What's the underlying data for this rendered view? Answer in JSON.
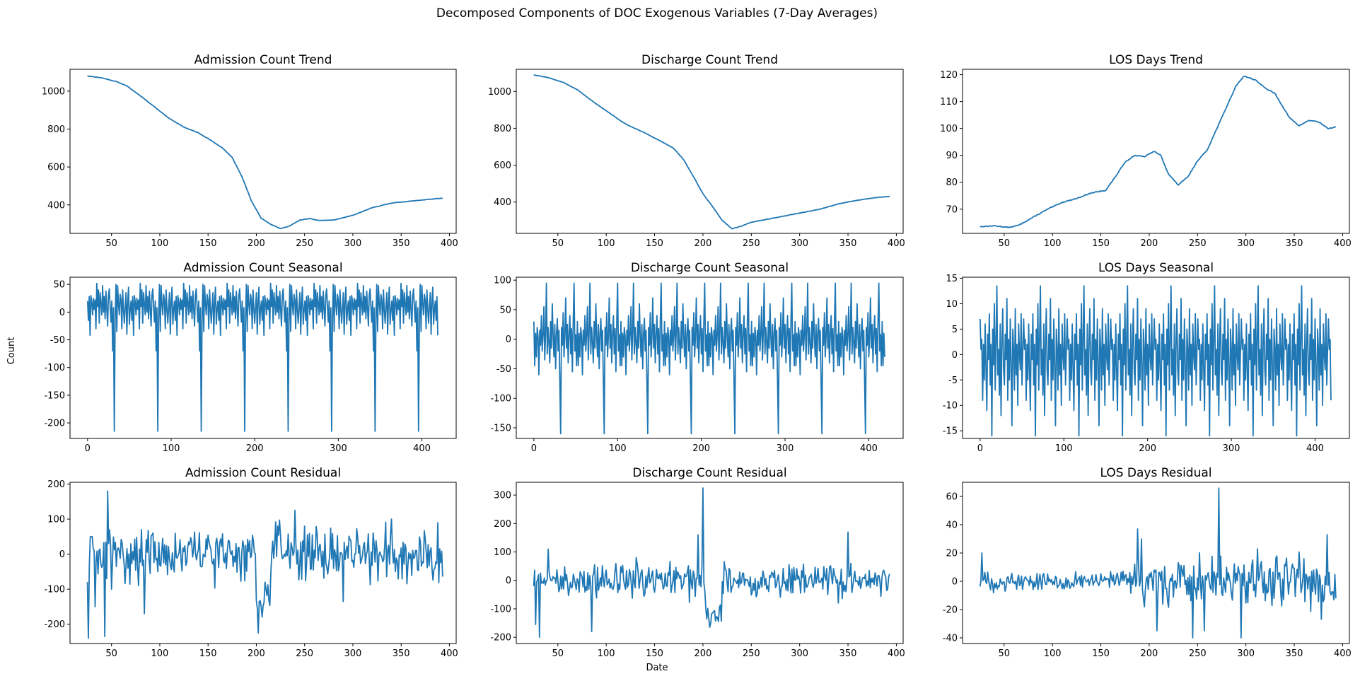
{
  "figure": {
    "suptitle": "Decomposed Components of DOC Exogenous Variables (7-Day Averages)",
    "shared_ylabel": "Count",
    "shared_xlabel": "Date",
    "line_color": "#1f77b4"
  },
  "chart_data": [
    {
      "type": "line",
      "title": "Admission Count Trend",
      "xlim": [
        7,
        407
      ],
      "ylim": [
        250,
        1115
      ],
      "xticks": [
        50,
        100,
        150,
        200,
        250,
        300,
        350,
        400
      ],
      "yticks": [
        400,
        600,
        800,
        1000
      ],
      "anchors": [
        [
          25,
          1080
        ],
        [
          40,
          1070
        ],
        [
          55,
          1050
        ],
        [
          65,
          1030
        ],
        [
          80,
          975
        ],
        [
          95,
          915
        ],
        [
          110,
          855
        ],
        [
          125,
          810
        ],
        [
          140,
          780
        ],
        [
          150,
          750
        ],
        [
          165,
          700
        ],
        [
          175,
          650
        ],
        [
          185,
          550
        ],
        [
          195,
          420
        ],
        [
          205,
          330
        ],
        [
          215,
          298
        ],
        [
          225,
          275
        ],
        [
          235,
          290
        ],
        [
          245,
          320
        ],
        [
          255,
          328
        ],
        [
          265,
          318
        ],
        [
          280,
          320
        ],
        [
          300,
          345
        ],
        [
          320,
          385
        ],
        [
          340,
          410
        ],
        [
          360,
          420
        ],
        [
          380,
          430
        ],
        [
          393,
          435
        ]
      ],
      "noise": 2,
      "seed": 11
    },
    {
      "type": "line",
      "title": "Discharge Count Trend",
      "xlim": [
        7,
        407
      ],
      "ylim": [
        230,
        1120
      ],
      "xticks": [
        50,
        100,
        150,
        200,
        250,
        300,
        350,
        400
      ],
      "yticks": [
        400,
        600,
        800,
        1000
      ],
      "anchors": [
        [
          25,
          1090
        ],
        [
          40,
          1075
        ],
        [
          55,
          1050
        ],
        [
          70,
          1010
        ],
        [
          85,
          950
        ],
        [
          100,
          895
        ],
        [
          115,
          840
        ],
        [
          125,
          810
        ],
        [
          140,
          775
        ],
        [
          160,
          720
        ],
        [
          170,
          690
        ],
        [
          180,
          630
        ],
        [
          190,
          540
        ],
        [
          200,
          445
        ],
        [
          210,
          375
        ],
        [
          220,
          300
        ],
        [
          230,
          255
        ],
        [
          240,
          270
        ],
        [
          250,
          290
        ],
        [
          265,
          305
        ],
        [
          280,
          320
        ],
        [
          300,
          340
        ],
        [
          320,
          360
        ],
        [
          340,
          390
        ],
        [
          360,
          410
        ],
        [
          380,
          425
        ],
        [
          393,
          430
        ]
      ],
      "noise": 2,
      "seed": 12
    },
    {
      "type": "line",
      "title": "LOS Days Trend",
      "xlim": [
        7,
        407
      ],
      "ylim": [
        61,
        122
      ],
      "xticks": [
        50,
        100,
        150,
        200,
        250,
        300,
        350,
        400
      ],
      "yticks": [
        70,
        80,
        90,
        100,
        110,
        120
      ],
      "anchors": [
        [
          25,
          63.5
        ],
        [
          40,
          63.8
        ],
        [
          55,
          63.2
        ],
        [
          65,
          64
        ],
        [
          75,
          66
        ],
        [
          85,
          68
        ],
        [
          95,
          70
        ],
        [
          110,
          72.5
        ],
        [
          125,
          74
        ],
        [
          140,
          76
        ],
        [
          155,
          77
        ],
        [
          165,
          82
        ],
        [
          175,
          87.5
        ],
        [
          185,
          90
        ],
        [
          195,
          89.5
        ],
        [
          205,
          91.5
        ],
        [
          212,
          90
        ],
        [
          220,
          83
        ],
        [
          230,
          79
        ],
        [
          240,
          82
        ],
        [
          250,
          88
        ],
        [
          260,
          92
        ],
        [
          270,
          100
        ],
        [
          280,
          108
        ],
        [
          290,
          116
        ],
        [
          298,
          119.5
        ],
        [
          310,
          118
        ],
        [
          320,
          115
        ],
        [
          330,
          113
        ],
        [
          345,
          104
        ],
        [
          355,
          101
        ],
        [
          365,
          103
        ],
        [
          375,
          102.5
        ],
        [
          385,
          100
        ],
        [
          393,
          100.5
        ]
      ],
      "noise": 0.3,
      "seed": 13
    },
    {
      "type": "line",
      "title": "Admission Count Seasonal",
      "xlim": [
        -21,
        441
      ],
      "ylim": [
        -228,
        63
      ],
      "xticks": [
        0,
        100,
        200,
        300,
        400
      ],
      "yticks": [
        -200,
        -150,
        -100,
        -50,
        0,
        50
      ],
      "period": 52,
      "n": 420,
      "pattern": [
        20,
        -15,
        28,
        -42,
        30,
        18,
        -5,
        25,
        5,
        22,
        -30,
        52,
        10,
        40,
        -20,
        35,
        15,
        -5,
        48,
        0,
        28,
        -12,
        38,
        5,
        -25,
        30,
        42,
        10,
        -18,
        20,
        -70,
        8,
        -215,
        -10,
        50,
        -35,
        48,
        15,
        -5,
        32,
        22,
        -30,
        40,
        5,
        -20,
        10,
        35,
        -40,
        18,
        45,
        -22,
        5
      ],
      "seed": 21
    },
    {
      "type": "line",
      "title": "Discharge Count Seasonal",
      "xlim": [
        -21,
        441
      ],
      "ylim": [
        -168,
        105
      ],
      "xticks": [
        0,
        100,
        200,
        300,
        400
      ],
      "yticks": [
        -150,
        -100,
        -50,
        0,
        50,
        100
      ],
      "period": 52,
      "n": 420,
      "pattern": [
        30,
        -45,
        10,
        -30,
        20,
        5,
        -60,
        15,
        -10,
        40,
        -20,
        8,
        55,
        -35,
        12,
        95,
        -25,
        20,
        -5,
        -40,
        30,
        -15,
        60,
        5,
        -30,
        25,
        -50,
        10,
        35,
        -20,
        15,
        -70,
        -160,
        20,
        -10,
        45,
        -30,
        5,
        70,
        -15,
        25,
        -40,
        10,
        40,
        -25,
        18,
        -55,
        30,
        95,
        -20,
        8,
        -45
      ],
      "seed": 22
    },
    {
      "type": "line",
      "title": "LOS Days Seasonal",
      "xlim": [
        -21,
        441
      ],
      "ylim": [
        -16.5,
        15.2
      ],
      "xticks": [
        0,
        100,
        200,
        300,
        400
      ],
      "yticks": [
        -15,
        -10,
        -5,
        0,
        5,
        10,
        15
      ],
      "period": 52,
      "n": 420,
      "pattern": [
        7,
        1,
        3,
        -9,
        2,
        -5,
        6,
        -3,
        -11,
        4,
        -1,
        8,
        -6,
        2,
        -16,
        5,
        -2,
        10,
        -7,
        3,
        13.5,
        -4,
        1,
        -8,
        6,
        -12,
        2,
        9,
        -3,
        -6,
        4,
        -1,
        11,
        -9,
        3,
        -5,
        7,
        -2,
        -14,
        5,
        1,
        -7,
        9,
        -4,
        2,
        -10,
        6,
        0,
        -3,
        8,
        -6,
        1
      ],
      "seed": 23
    },
    {
      "type": "line",
      "title": "Admission Count Residual",
      "xlim": [
        7,
        407
      ],
      "ylim": [
        -255,
        205
      ],
      "xticks": [
        50,
        100,
        150,
        200,
        250,
        300,
        350,
        400
      ],
      "yticks": [
        -200,
        -100,
        0,
        100,
        200
      ],
      "x0": 25,
      "x1": 393,
      "amp": 55,
      "seed": 31,
      "spikes": [
        [
          26,
          -240
        ],
        [
          29,
          50
        ],
        [
          33,
          -150
        ],
        [
          39,
          -30
        ],
        [
          43,
          -235
        ],
        [
          46,
          180
        ],
        [
          50,
          -100
        ],
        [
          84,
          -170
        ],
        [
          202,
          -225
        ],
        [
          205,
          -150
        ],
        [
          210,
          -100
        ],
        [
          222,
          80
        ],
        [
          240,
          125
        ],
        [
          290,
          -135
        ],
        [
          340,
          100
        ],
        [
          388,
          90
        ]
      ],
      "shifts": [
        [
          200,
          215,
          -120
        ],
        [
          215,
          235,
          30
        ]
      ]
    },
    {
      "type": "line",
      "title": "Discharge Count Residual",
      "xlim": [
        7,
        407
      ],
      "ylim": [
        -222,
        345
      ],
      "xticks": [
        50,
        100,
        150,
        200,
        250,
        300,
        350,
        400
      ],
      "yticks": [
        -200,
        -100,
        0,
        100,
        200,
        300
      ],
      "x0": 25,
      "x1": 393,
      "amp": 45,
      "seed": 32,
      "spikes": [
        [
          27,
          -155
        ],
        [
          31,
          -200
        ],
        [
          40,
          110
        ],
        [
          85,
          -180
        ],
        [
          195,
          160
        ],
        [
          200,
          325
        ],
        [
          203,
          -100
        ],
        [
          207,
          -165
        ],
        [
          215,
          -130
        ],
        [
          350,
          170
        ]
      ],
      "shifts": [
        [
          203,
          220,
          -120
        ]
      ]
    },
    {
      "type": "line",
      "title": "LOS Days Residual",
      "xlim": [
        7,
        407
      ],
      "ylim": [
        -44,
        70
      ],
      "xticks": [
        50,
        100,
        150,
        200,
        250,
        300,
        350,
        400
      ],
      "yticks": [
        -40,
        -20,
        0,
        20,
        40,
        60
      ],
      "x0": 25,
      "x1": 393,
      "amp": 5,
      "seed": 33,
      "spikes": [
        [
          27,
          20
        ],
        [
          188,
          37
        ],
        [
          192,
          30
        ],
        [
          208,
          -35
        ],
        [
          245,
          -40
        ],
        [
          257,
          -35
        ],
        [
          272,
          66
        ],
        [
          295,
          -40
        ],
        [
          384,
          33
        ],
        [
          393,
          -12
        ]
      ],
      "ampRanges": [
        [
          25,
          180,
          5
        ],
        [
          180,
          400,
          14
        ]
      ]
    }
  ]
}
